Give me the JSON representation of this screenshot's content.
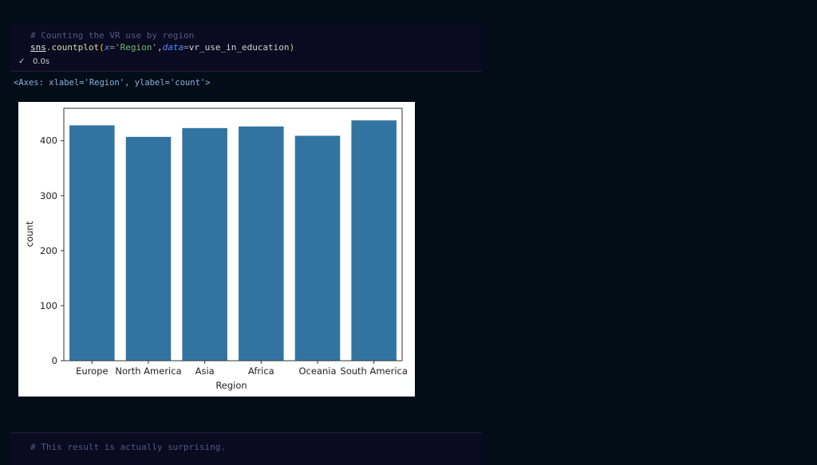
{
  "cell1": {
    "comment": "# Counting the VR use by region",
    "code": {
      "obj": "sns",
      "dot": ".",
      "func": "countplot",
      "open": "(",
      "kw1": "x",
      "eq1": "=",
      "str1": "'Region'",
      "comma": ",",
      "kw2": "data",
      "eq2": "=",
      "arg2": "vr_use_in_education",
      "close": ")"
    },
    "status_icon": "check-icon",
    "status_check": "✓",
    "duration": "0.0s",
    "output": "<Axes: xlabel='Region', ylabel='count'>"
  },
  "cell2": {
    "comment": "# This result is actually surprising."
  },
  "chart_data": {
    "type": "bar",
    "categories": [
      "Europe",
      "North America",
      "Asia",
      "Africa",
      "Oceania",
      "South America"
    ],
    "values": [
      428,
      407,
      423,
      426,
      409,
      437
    ],
    "xlabel": "Region",
    "ylabel": "count",
    "ylim": [
      0,
      459
    ],
    "yticks": [
      "0",
      "100",
      "200",
      "300",
      "400"
    ],
    "bar_color": "#3274a1",
    "grid": false
  }
}
